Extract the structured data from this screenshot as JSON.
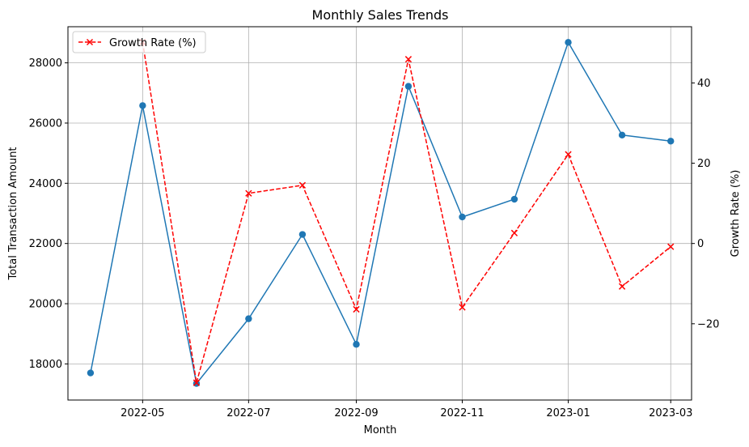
{
  "chart_data": {
    "type": "line",
    "title": "Monthly Sales Trends",
    "xlabel": "Month",
    "ylabel_left": "Total Transaction Amount",
    "ylabel_right": "Growth Rate (%)",
    "x": [
      "2022-04",
      "2022-05",
      "2022-06",
      "2022-07",
      "2022-08",
      "2022-09",
      "2022-10",
      "2022-11",
      "2022-12",
      "2023-01",
      "2023-02",
      "2023-03"
    ],
    "x_ticks": [
      "2022-05",
      "2022-07",
      "2022-09",
      "2022-11",
      "2023-01",
      "2023-03"
    ],
    "x_range": [
      "2022-03-19",
      "2023-03-13"
    ],
    "y_left_ticks": [
      18000,
      20000,
      22000,
      24000,
      26000,
      28000
    ],
    "y_left_range": [
      16800,
      29200
    ],
    "y_right_ticks": [
      -20,
      0,
      20,
      40
    ],
    "y_right_range": [
      -39,
      54
    ],
    "grid": true,
    "legend_placement": "top-left",
    "series": [
      {
        "axis": "left",
        "color": "#1f77b4",
        "marker": "circle",
        "linestyle": "solid",
        "values": [
          17700,
          26580,
          17350,
          19500,
          22300,
          18650,
          27220,
          22880,
          23470,
          28680,
          25600,
          25400
        ]
      },
      {
        "name": "Growth Rate (%)",
        "axis": "right",
        "color": "#ff0000",
        "marker": "x",
        "linestyle": "dashed",
        "values": [
          null,
          50.2,
          -34.7,
          12.5,
          14.5,
          -16.4,
          45.9,
          -15.9,
          2.6,
          22.2,
          -10.7,
          -0.8
        ]
      }
    ]
  }
}
